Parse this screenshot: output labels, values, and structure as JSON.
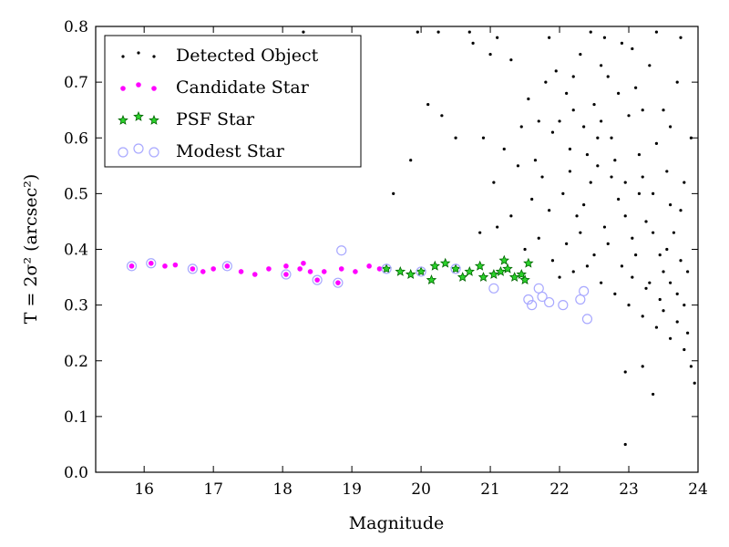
{
  "chart_data": {
    "type": "scatter",
    "xlabel": "Magnitude",
    "ylabel": "T = 2σ² (arcsec²)",
    "xlim": [
      15.3,
      24.0
    ],
    "ylim": [
      0.0,
      0.8
    ],
    "xticks": [
      "16",
      "17",
      "18",
      "19",
      "20",
      "21",
      "22",
      "23",
      "24"
    ],
    "yticks": [
      "0.0",
      "0.1",
      "0.2",
      "0.3",
      "0.4",
      "0.5",
      "0.6",
      "0.7",
      "0.8"
    ],
    "grid": false,
    "legend_position": "top-left",
    "colors": {
      "detected": "#000000",
      "candidate_fill": "#ff00ff",
      "psf_fill": "#2bd22b",
      "psf_edge": "#006400",
      "modest_edge": "#a8a8ff"
    },
    "series": [
      {
        "name": "Detected Object",
        "marker": "point",
        "points": [
          [
            18.3,
            0.79
          ],
          [
            19.95,
            0.79
          ],
          [
            20.25,
            0.79
          ],
          [
            20.7,
            0.79
          ],
          [
            19.1,
            0.72
          ],
          [
            18.9,
            0.76
          ],
          [
            20.75,
            0.77
          ],
          [
            21.0,
            0.75
          ],
          [
            21.1,
            0.78
          ],
          [
            21.3,
            0.74
          ],
          [
            20.1,
            0.66
          ],
          [
            20.3,
            0.64
          ],
          [
            20.5,
            0.6
          ],
          [
            19.85,
            0.56
          ],
          [
            19.6,
            0.5
          ],
          [
            20.9,
            0.6
          ],
          [
            21.05,
            0.52
          ],
          [
            21.2,
            0.58
          ],
          [
            21.4,
            0.55
          ],
          [
            21.6,
            0.49
          ],
          [
            21.1,
            0.44
          ],
          [
            20.85,
            0.43
          ],
          [
            21.3,
            0.46
          ],
          [
            21.5,
            0.4
          ],
          [
            21.7,
            0.42
          ],
          [
            21.9,
            0.38
          ],
          [
            22.0,
            0.35
          ],
          [
            22.2,
            0.36
          ],
          [
            22.4,
            0.37
          ],
          [
            22.6,
            0.34
          ],
          [
            22.8,
            0.32
          ],
          [
            23.0,
            0.3
          ],
          [
            23.2,
            0.28
          ],
          [
            23.4,
            0.26
          ],
          [
            23.6,
            0.24
          ],
          [
            23.8,
            0.22
          ],
          [
            23.9,
            0.19
          ],
          [
            23.95,
            0.16
          ],
          [
            22.95,
            0.18
          ],
          [
            23.2,
            0.19
          ],
          [
            23.35,
            0.14
          ],
          [
            22.95,
            0.05
          ],
          [
            23.85,
            0.25
          ],
          [
            23.7,
            0.27
          ],
          [
            23.5,
            0.29
          ],
          [
            21.8,
            0.7
          ],
          [
            21.95,
            0.72
          ],
          [
            22.1,
            0.68
          ],
          [
            22.3,
            0.75
          ],
          [
            22.5,
            0.66
          ],
          [
            22.7,
            0.71
          ],
          [
            22.9,
            0.77
          ],
          [
            23.1,
            0.69
          ],
          [
            23.3,
            0.73
          ],
          [
            23.5,
            0.65
          ],
          [
            23.7,
            0.7
          ],
          [
            23.9,
            0.6
          ],
          [
            21.9,
            0.61
          ],
          [
            22.15,
            0.58
          ],
          [
            22.35,
            0.62
          ],
          [
            22.55,
            0.55
          ],
          [
            22.75,
            0.6
          ],
          [
            22.95,
            0.52
          ],
          [
            23.15,
            0.57
          ],
          [
            23.35,
            0.5
          ],
          [
            23.55,
            0.54
          ],
          [
            23.75,
            0.47
          ],
          [
            22.05,
            0.5
          ],
          [
            22.25,
            0.46
          ],
          [
            22.45,
            0.52
          ],
          [
            22.65,
            0.44
          ],
          [
            22.85,
            0.49
          ],
          [
            23.05,
            0.42
          ],
          [
            23.25,
            0.45
          ],
          [
            23.45,
            0.39
          ],
          [
            23.65,
            0.43
          ],
          [
            23.85,
            0.36
          ],
          [
            22.1,
            0.41
          ],
          [
            22.3,
            0.43
          ],
          [
            22.5,
            0.39
          ],
          [
            22.7,
            0.41
          ],
          [
            22.9,
            0.37
          ],
          [
            23.1,
            0.39
          ],
          [
            23.3,
            0.34
          ],
          [
            23.5,
            0.36
          ],
          [
            23.7,
            0.32
          ],
          [
            22.0,
            0.63
          ],
          [
            22.2,
            0.65
          ],
          [
            22.4,
            0.57
          ],
          [
            22.6,
            0.63
          ],
          [
            22.8,
            0.56
          ],
          [
            23.0,
            0.64
          ],
          [
            23.2,
            0.53
          ],
          [
            23.4,
            0.59
          ],
          [
            23.6,
            0.48
          ],
          [
            23.8,
            0.52
          ],
          [
            21.75,
            0.53
          ],
          [
            21.85,
            0.47
          ],
          [
            21.65,
            0.56
          ],
          [
            22.15,
            0.54
          ],
          [
            22.35,
            0.48
          ],
          [
            22.55,
            0.6
          ],
          [
            22.75,
            0.53
          ],
          [
            22.95,
            0.46
          ],
          [
            23.15,
            0.5
          ],
          [
            23.35,
            0.43
          ],
          [
            23.55,
            0.4
          ],
          [
            23.75,
            0.38
          ],
          [
            23.45,
            0.31
          ],
          [
            23.25,
            0.33
          ],
          [
            23.05,
            0.35
          ],
          [
            23.6,
            0.34
          ],
          [
            23.8,
            0.3
          ],
          [
            21.55,
            0.67
          ],
          [
            21.7,
            0.63
          ],
          [
            21.45,
            0.62
          ],
          [
            22.45,
            0.79
          ],
          [
            22.65,
            0.78
          ],
          [
            23.05,
            0.76
          ],
          [
            23.4,
            0.79
          ],
          [
            23.75,
            0.78
          ],
          [
            21.85,
            0.78
          ],
          [
            22.2,
            0.71
          ],
          [
            22.6,
            0.73
          ],
          [
            22.85,
            0.68
          ],
          [
            23.2,
            0.65
          ],
          [
            23.6,
            0.62
          ]
        ]
      },
      {
        "name": "Candidate Star",
        "marker": "circle",
        "points": [
          [
            15.82,
            0.37
          ],
          [
            16.1,
            0.375
          ],
          [
            16.3,
            0.37
          ],
          [
            16.45,
            0.372
          ],
          [
            16.7,
            0.365
          ],
          [
            16.85,
            0.36
          ],
          [
            17.0,
            0.365
          ],
          [
            17.2,
            0.37
          ],
          [
            17.4,
            0.36
          ],
          [
            17.6,
            0.355
          ],
          [
            17.8,
            0.365
          ],
          [
            18.05,
            0.37
          ],
          [
            18.25,
            0.365
          ],
          [
            18.4,
            0.36
          ],
          [
            18.6,
            0.36
          ],
          [
            18.85,
            0.365
          ],
          [
            19.05,
            0.36
          ],
          [
            19.25,
            0.37
          ],
          [
            19.4,
            0.365
          ],
          [
            18.05,
            0.355
          ],
          [
            18.5,
            0.345
          ],
          [
            18.8,
            0.34
          ],
          [
            18.3,
            0.375
          ]
        ]
      },
      {
        "name": "PSF Star",
        "marker": "star",
        "points": [
          [
            19.5,
            0.365
          ],
          [
            19.7,
            0.36
          ],
          [
            19.85,
            0.355
          ],
          [
            20.0,
            0.36
          ],
          [
            20.2,
            0.37
          ],
          [
            20.35,
            0.375
          ],
          [
            20.5,
            0.365
          ],
          [
            20.7,
            0.36
          ],
          [
            20.85,
            0.37
          ],
          [
            20.9,
            0.35
          ],
          [
            21.05,
            0.355
          ],
          [
            21.15,
            0.36
          ],
          [
            21.25,
            0.365
          ],
          [
            21.35,
            0.35
          ],
          [
            21.45,
            0.355
          ],
          [
            21.5,
            0.345
          ],
          [
            21.55,
            0.375
          ],
          [
            21.2,
            0.38
          ],
          [
            20.6,
            0.35
          ],
          [
            20.15,
            0.345
          ]
        ]
      },
      {
        "name": "Modest Star",
        "marker": "open-circle",
        "points": [
          [
            15.82,
            0.37
          ],
          [
            16.1,
            0.375
          ],
          [
            16.7,
            0.365
          ],
          [
            17.2,
            0.37
          ],
          [
            18.05,
            0.355
          ],
          [
            18.5,
            0.345
          ],
          [
            18.8,
            0.34
          ],
          [
            18.85,
            0.398
          ],
          [
            19.5,
            0.365
          ],
          [
            20.0,
            0.36
          ],
          [
            20.5,
            0.365
          ],
          [
            21.05,
            0.33
          ],
          [
            21.55,
            0.31
          ],
          [
            21.6,
            0.3
          ],
          [
            21.75,
            0.315
          ],
          [
            21.85,
            0.305
          ],
          [
            22.05,
            0.3
          ],
          [
            22.3,
            0.31
          ],
          [
            22.4,
            0.275
          ],
          [
            22.35,
            0.325
          ],
          [
            21.7,
            0.33
          ]
        ]
      }
    ]
  }
}
